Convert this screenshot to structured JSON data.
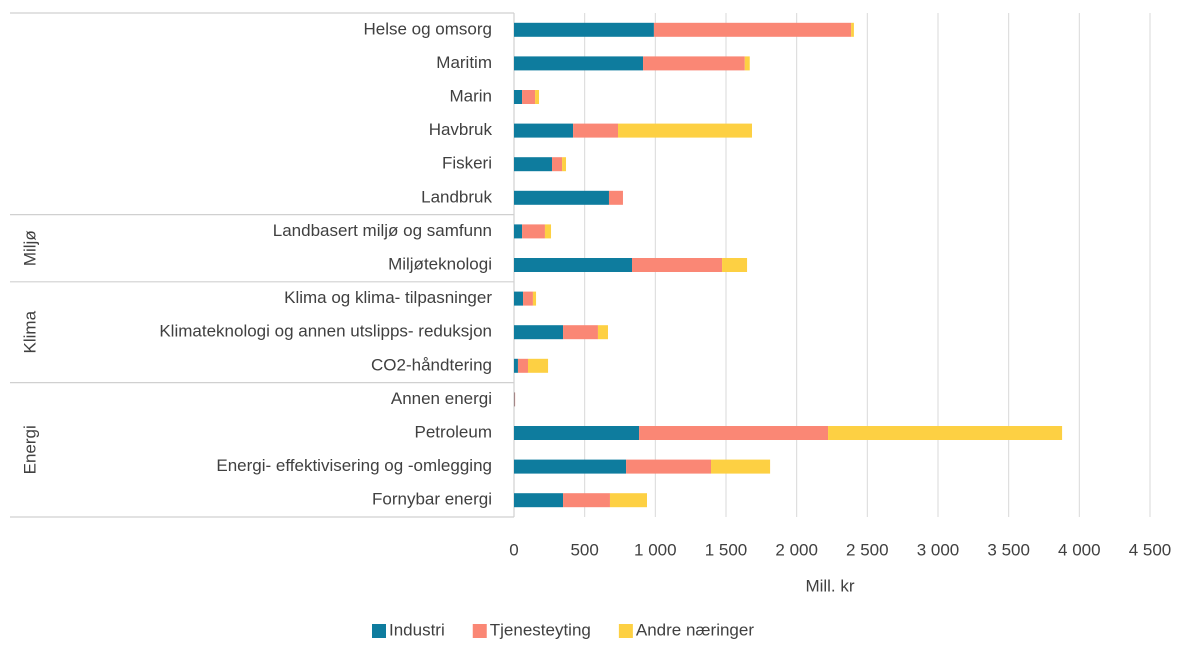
{
  "chart_data": {
    "type": "stacked_barh",
    "xlabel": "Mill. kr",
    "categories": [
      "Helse og omsorg",
      "Maritim",
      "Marin",
      "Havbruk",
      "Fiskeri",
      "Landbruk",
      "Landbasert miljø og samfunn",
      "Miljøteknologi",
      "Klima og klima- tilpasninger",
      "Klimateknologi og annen utslipps- reduksjon",
      "CO2-håndtering",
      "Annen energi",
      "Petroleum",
      "Energi- effektivisering og -omlegging",
      "Fornybar energi"
    ],
    "category_groups": [
      null,
      null,
      null,
      null,
      null,
      null,
      "Miljø",
      "Miljø",
      "Klima",
      "Klima",
      "Klima",
      "Energi",
      "Energi",
      "Energi",
      "Energi"
    ],
    "series": [
      {
        "name": "Industri",
        "color": "#0e7c9e",
        "values": [
          990,
          913,
          57,
          418,
          269,
          672,
          57,
          835,
          64,
          347,
          28,
          3,
          885,
          793,
          347
        ]
      },
      {
        "name": "Tjenesteyting",
        "color": "#fa8775",
        "values": [
          1395,
          720,
          92,
          318,
          71,
          99,
          162,
          637,
          70,
          247,
          71,
          5,
          1337,
          601,
          332
        ]
      },
      {
        "name": "Andre næringer",
        "color": "#fdd043",
        "values": [
          20,
          35,
          28,
          948,
          28,
          0,
          43,
          177,
          22,
          71,
          142,
          0,
          1656,
          418,
          262
        ]
      }
    ],
    "xlim": [
      0,
      4500
    ],
    "xticks": [
      0,
      500,
      {
        "value": 1000,
        "label": "1 000"
      },
      {
        "value": 1500,
        "label": "1 500"
      },
      {
        "value": 2000,
        "label": "2 000"
      },
      {
        "value": 2500,
        "label": "2 500"
      },
      {
        "value": 3000,
        "label": "3 000"
      },
      {
        "value": 3500,
        "label": "3 500"
      },
      {
        "value": 4000,
        "label": "4 000"
      },
      {
        "value": 4500,
        "label": "4 500"
      }
    ],
    "grid": true,
    "legend": "bottom"
  }
}
